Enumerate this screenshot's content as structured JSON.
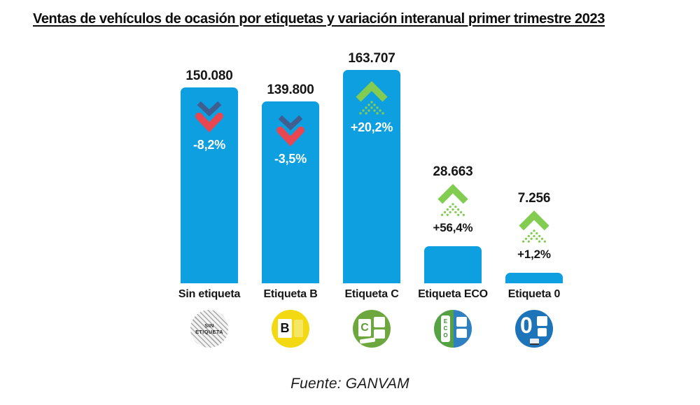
{
  "page": {
    "title": "Ventas de vehículos de ocasión por etiquetas y variación interanual primer trimestre 2023",
    "source": "Fuente: GANVAM"
  },
  "chart_data": {
    "type": "bar",
    "title": "Ventas de vehículos de ocasión por etiquetas y variación interanual primer trimestre 2023",
    "categories": [
      "Sin etiqueta",
      "Etiqueta B",
      "Etiqueta C",
      "Etiqueta ECO",
      "Etiqueta 0"
    ],
    "values": [
      150080,
      139800,
      163707,
      28663,
      7256
    ],
    "value_labels": [
      "150.080",
      "139.800",
      "163.707",
      "28.663",
      "7.256"
    ],
    "yoy_change": [
      "-8,2%",
      "-3,5%",
      "+20,2%",
      "+56,4%",
      "+1,2%"
    ],
    "trend_direction": [
      "down",
      "down",
      "up",
      "up",
      "up"
    ],
    "badge_labels": [
      "SIN ETIQUETA",
      "B",
      "C",
      "ECO",
      "0"
    ],
    "xlabel": "",
    "ylabel": "",
    "ylim": [
      0,
      170000
    ],
    "grid": false,
    "legend": "none",
    "source": "Fuente: GANVAM",
    "colors": {
      "bar": "#0d9fdf",
      "up_arrow": "#82cc52",
      "down_arrow_red": "#e84650",
      "down_arrow_navy": "#4b5284",
      "badge_b": "#f3d911",
      "badge_c": "#6da73d",
      "badge_eco_green": "#55a244",
      "badge_eco_blue": "#2f80c0",
      "badge_zero": "#1e74b8",
      "text": "#141414"
    }
  }
}
